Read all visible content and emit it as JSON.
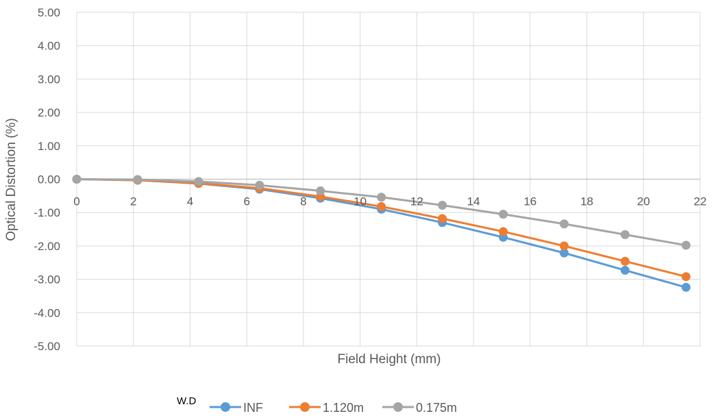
{
  "chart_data": {
    "type": "line",
    "title": "",
    "xlabel": "Field Height (mm)",
    "ylabel": "Optical Distortion (%)",
    "xlim": [
      0,
      22
    ],
    "ylim": [
      -5,
      5
    ],
    "x_ticks": [
      "0",
      "2",
      "4",
      "6",
      "8",
      "10",
      "12",
      "14",
      "16",
      "18",
      "20",
      "22"
    ],
    "y_ticks": [
      "5.00",
      "4.00",
      "3.00",
      "2.00",
      "1.00",
      "0.00",
      "-1.00",
      "-2.00",
      "-3.00",
      "-4.00",
      "-5.00"
    ],
    "grid": true,
    "legend_title": "W.D",
    "legend_position": "bottom",
    "x": [
      0,
      2.15,
      4.3,
      6.45,
      8.6,
      10.75,
      12.9,
      15.05,
      17.2,
      19.35,
      21.5
    ],
    "series": [
      {
        "name": "INF",
        "color": "#5B9BD5",
        "values": [
          0,
          -0.03,
          -0.13,
          -0.3,
          -0.57,
          -0.9,
          -1.3,
          -1.74,
          -2.21,
          -2.73,
          -3.24
        ]
      },
      {
        "name": "1.120m",
        "color": "#ED7D31",
        "values": [
          0,
          -0.03,
          -0.12,
          -0.27,
          -0.52,
          -0.82,
          -1.18,
          -1.57,
          -2.0,
          -2.46,
          -2.92
        ]
      },
      {
        "name": "0.175m",
        "color": "#A5A5A5",
        "values": [
          0,
          -0.01,
          -0.07,
          -0.18,
          -0.35,
          -0.54,
          -0.78,
          -1.05,
          -1.34,
          -1.66,
          -1.98
        ]
      }
    ]
  }
}
